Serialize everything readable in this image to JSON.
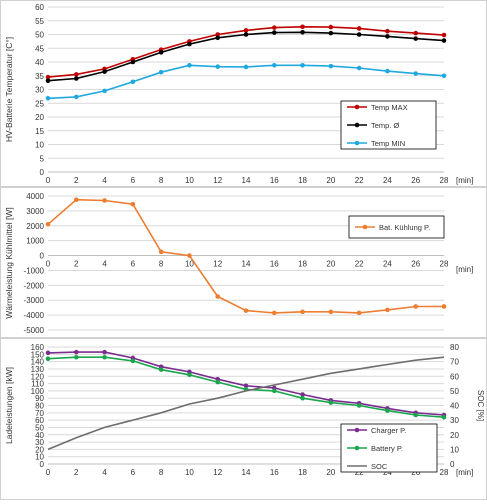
{
  "chart_data": [
    {
      "type": "line",
      "ylabel": "HV-Batterie Temperatur [C°]",
      "x_unit": "[min]",
      "x": [
        0,
        2,
        4,
        6,
        8,
        10,
        12,
        14,
        16,
        18,
        20,
        22,
        24,
        26,
        28
      ],
      "xlim": [
        0,
        28
      ],
      "x_ticks": [
        0,
        2,
        4,
        6,
        8,
        10,
        12,
        14,
        16,
        18,
        20,
        22,
        24,
        26,
        28
      ],
      "ylim": [
        0,
        60
      ],
      "y_ticks": [
        0,
        5,
        10,
        15,
        20,
        25,
        30,
        35,
        40,
        45,
        50,
        55,
        60
      ],
      "grid": "horizontal",
      "legend": "bottom-right",
      "series": [
        {
          "name": "Temp MAX",
          "color": "#c00000",
          "values": [
            34.5,
            35.5,
            37.5,
            41,
            44.5,
            47.5,
            50,
            51.5,
            52.5,
            52.8,
            52.7,
            52.2,
            51.2,
            50.5,
            49.8
          ]
        },
        {
          "name": "Temp. Ø",
          "color": "#000000",
          "values": [
            33.2,
            34,
            36.5,
            40,
            43.5,
            46.5,
            48.8,
            50,
            50.7,
            50.8,
            50.5,
            50,
            49.3,
            48.5,
            47.8
          ]
        },
        {
          "name": "Temp MIN",
          "color": "#20a8e0",
          "values": [
            26.8,
            27.3,
            29.5,
            32.8,
            36.3,
            38.8,
            38.3,
            38.2,
            38.8,
            38.8,
            38.5,
            37.8,
            36.7,
            35.8,
            35
          ]
        }
      ]
    },
    {
      "type": "line",
      "ylabel": "Wärmeleistung Kühlmittel [W]",
      "x_unit": "[min]",
      "x": [
        0,
        2,
        4,
        6,
        8,
        10,
        12,
        14,
        16,
        18,
        20,
        22,
        24,
        26,
        28
      ],
      "xlim": [
        0,
        28
      ],
      "x_ticks": [
        0,
        2,
        4,
        6,
        8,
        10,
        12,
        14,
        16,
        18,
        20,
        22,
        24,
        26,
        28
      ],
      "ylim": [
        -5000,
        4000
      ],
      "y_ticks": [
        -5000,
        -4000,
        -3000,
        -2000,
        -1000,
        0,
        1000,
        2000,
        3000,
        4000
      ],
      "grid": "horizontal",
      "legend": "right",
      "series": [
        {
          "name": "Bat. Kühlung P.",
          "color": "#ed7d31",
          "values": [
            2100,
            3750,
            3700,
            3450,
            250,
            0,
            -2750,
            -3700,
            -3850,
            -3780,
            -3780,
            -3850,
            -3650,
            -3420,
            -3420
          ]
        }
      ]
    },
    {
      "type": "line",
      "ylabel": "Ladeleistungen [kW]",
      "y2label": "SOC [%]",
      "x_unit": "[min]",
      "x": [
        0,
        2,
        4,
        6,
        8,
        10,
        12,
        14,
        16,
        18,
        20,
        22,
        24,
        26,
        28
      ],
      "xlim": [
        0,
        28
      ],
      "x_ticks": [
        0,
        2,
        4,
        6,
        8,
        10,
        12,
        14,
        16,
        18,
        20,
        22,
        24,
        26,
        28
      ],
      "ylim": [
        0,
        160
      ],
      "y_ticks": [
        0,
        10,
        20,
        30,
        40,
        50,
        60,
        70,
        80,
        90,
        100,
        110,
        120,
        130,
        140,
        150,
        160
      ],
      "y2lim": [
        0,
        80
      ],
      "y2_ticks": [
        0,
        10,
        20,
        30,
        40,
        50,
        60,
        70,
        80
      ],
      "grid": "horizontal",
      "legend": "bottom-right",
      "series": [
        {
          "name": "Charger P.",
          "color": "#7b2c8f",
          "axis": "left",
          "values": [
            152,
            153,
            153,
            145,
            133,
            126,
            116,
            107,
            104,
            95,
            87,
            83,
            76,
            70,
            67
          ]
        },
        {
          "name": "Battery P.",
          "color": "#1aa64b",
          "axis": "left",
          "values": [
            144,
            146,
            146,
            141,
            129,
            122,
            112,
            102,
            100,
            90,
            84,
            80,
            73,
            67,
            64
          ]
        },
        {
          "name": "SOC",
          "color": "#6e6e6e",
          "axis": "right",
          "marker": "none",
          "values": [
            10,
            18,
            25,
            30,
            35,
            41,
            45,
            50,
            54,
            58,
            62,
            65,
            68,
            71,
            73
          ]
        }
      ]
    }
  ]
}
